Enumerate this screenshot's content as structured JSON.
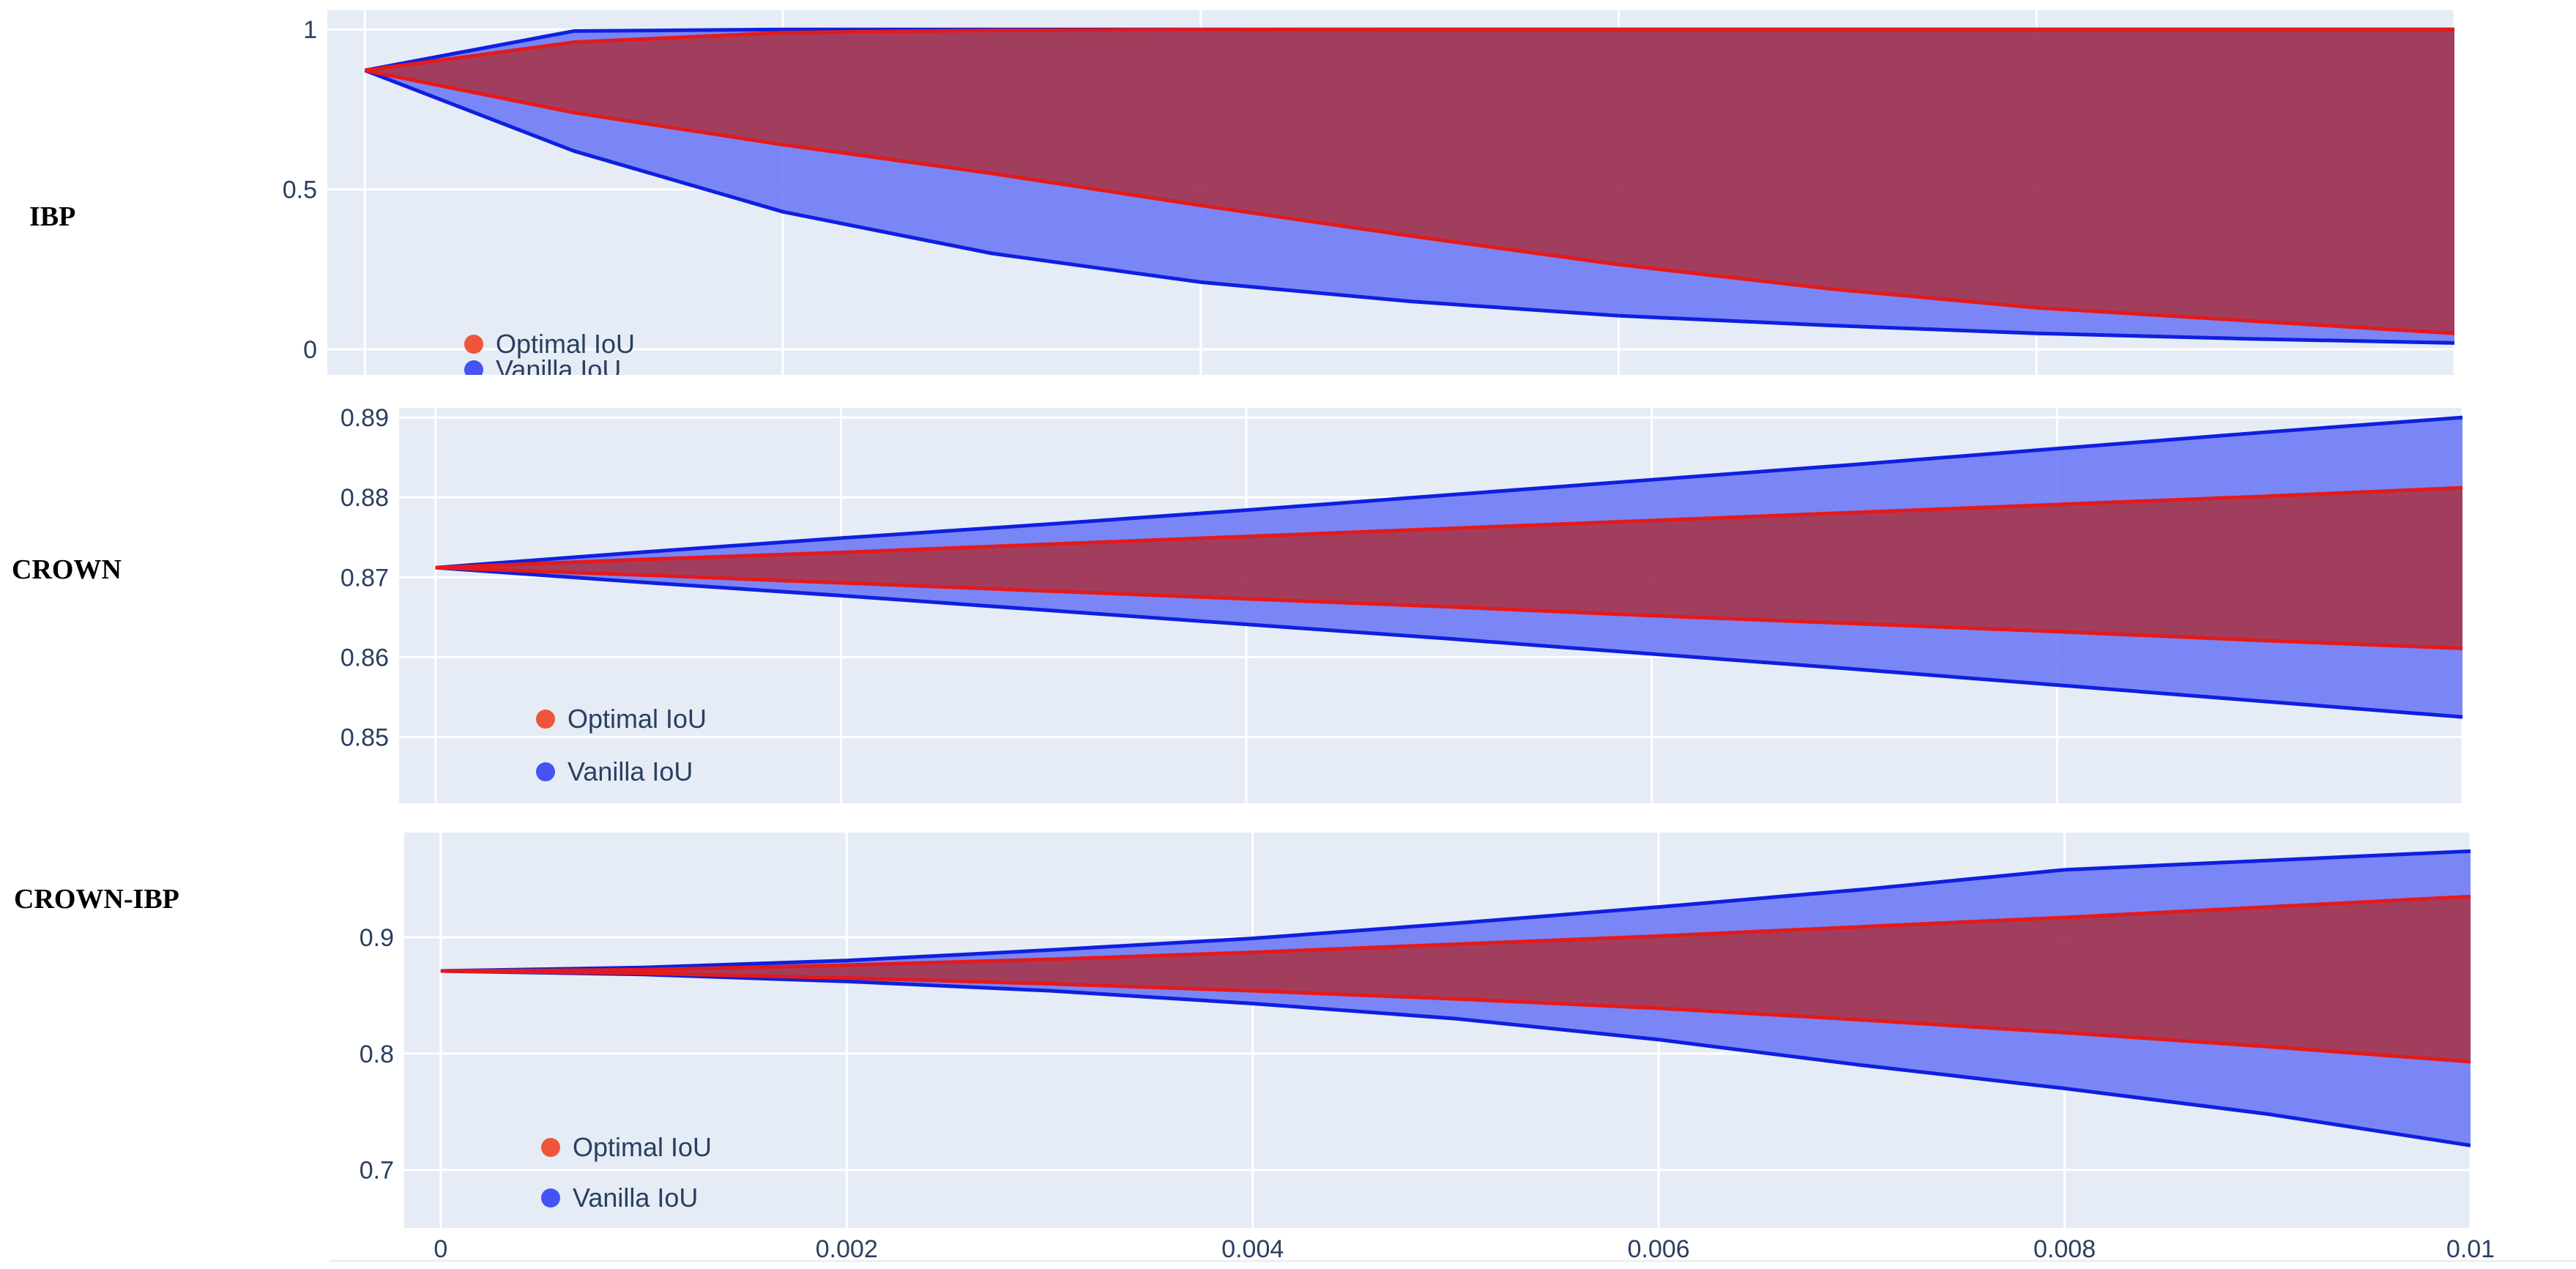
{
  "colors": {
    "background": "#ffffff",
    "plot_bg": "#e5ecf6",
    "grid": "#ffffff",
    "tick_text": "#2a3f5f",
    "optimal_line": "#e31a1c",
    "optimal_marker": "#ef553b",
    "optimal_fill": "#b22222",
    "vanilla_line": "#0f1fe0",
    "vanilla_marker": "#4552f5",
    "vanilla_fill": "#6b78f5"
  },
  "chart_data": [
    {
      "type": "area",
      "row_label": "IBP",
      "x": [
        0,
        0.001,
        0.002,
        0.003,
        0.004,
        0.005,
        0.006,
        0.007,
        0.008,
        0.009,
        0.01
      ],
      "xlim": [
        -0.00018,
        0.01
      ],
      "ylim": [
        -0.08,
        1.06
      ],
      "yticks": [
        0,
        0.5,
        1
      ],
      "ytick_labels": [
        "0",
        "0.5",
        "1"
      ],
      "xticks": [
        0,
        0.002,
        0.004,
        0.006,
        0.008,
        0.01
      ],
      "xtick_labels": [],
      "legend": {
        "placement": "bottom-left"
      },
      "series": [
        {
          "name": "Optimal IoU",
          "upper": [
            0.872,
            0.96,
            0.99,
            0.997,
            0.999,
            1.0,
            1.0,
            1.0,
            1.0,
            1.0,
            1.0
          ],
          "lower": [
            0.872,
            0.74,
            0.64,
            0.55,
            0.45,
            0.355,
            0.265,
            0.19,
            0.13,
            0.09,
            0.05
          ]
        },
        {
          "name": "Vanilla IoU",
          "upper": [
            0.872,
            0.995,
            1.0,
            1.0,
            1.0,
            1.0,
            1.0,
            1.0,
            1.0,
            1.0,
            1.0
          ],
          "lower": [
            0.872,
            0.62,
            0.43,
            0.3,
            0.21,
            0.15,
            0.105,
            0.075,
            0.05,
            0.033,
            0.02
          ]
        }
      ]
    },
    {
      "type": "area",
      "row_label": "CROWN",
      "x": [
        0,
        0.001,
        0.002,
        0.003,
        0.004,
        0.005,
        0.006,
        0.007,
        0.008,
        0.009,
        0.01
      ],
      "xlim": [
        -0.00018,
        0.01
      ],
      "ylim": [
        0.8417,
        0.8912
      ],
      "yticks": [
        0.85,
        0.86,
        0.87,
        0.88,
        0.89
      ],
      "ytick_labels": [
        "0.85",
        "0.86",
        "0.87",
        "0.88",
        "0.89"
      ],
      "xticks": [
        0,
        0.002,
        0.004,
        0.006,
        0.008,
        0.01
      ],
      "xtick_labels": [],
      "legend": {
        "placement": "bottom-left"
      },
      "series": [
        {
          "name": "Optimal IoU",
          "upper": [
            0.8712,
            0.8722,
            0.8731,
            0.8741,
            0.8751,
            0.8761,
            0.8771,
            0.8781,
            0.8791,
            0.8801,
            0.8812
          ],
          "lower": [
            0.8712,
            0.8703,
            0.8693,
            0.8683,
            0.8673,
            0.8663,
            0.8652,
            0.8642,
            0.8632,
            0.8621,
            0.8611
          ]
        },
        {
          "name": "Vanilla IoU",
          "upper": [
            0.8712,
            0.8731,
            0.8749,
            0.8766,
            0.8784,
            0.8803,
            0.8822,
            0.8841,
            0.8861,
            0.8881,
            0.89
          ],
          "lower": [
            0.8712,
            0.8694,
            0.8677,
            0.8659,
            0.8641,
            0.8623,
            0.8604,
            0.8585,
            0.8565,
            0.8545,
            0.8525
          ]
        }
      ]
    },
    {
      "type": "area",
      "row_label": "CROWN-IBP",
      "x": [
        0,
        0.001,
        0.002,
        0.003,
        0.004,
        0.005,
        0.006,
        0.007,
        0.008,
        0.009,
        0.01
      ],
      "xlim": [
        -0.00018,
        0.01
      ],
      "ylim": [
        0.65,
        0.99
      ],
      "yticks": [
        0.7,
        0.8,
        0.9
      ],
      "ytick_labels": [
        "0.7",
        "0.8",
        "0.9"
      ],
      "xticks": [
        0,
        0.002,
        0.004,
        0.006,
        0.008,
        0.01
      ],
      "xtick_labels": [
        "0",
        "0.002",
        "0.004",
        "0.006",
        "0.008",
        "0.01"
      ],
      "legend": {
        "placement": "bottom-left"
      },
      "series": [
        {
          "name": "Optimal IoU",
          "upper": [
            0.871,
            0.872,
            0.876,
            0.881,
            0.887,
            0.894,
            0.901,
            0.909,
            0.917,
            0.926,
            0.935
          ],
          "lower": [
            0.871,
            0.869,
            0.865,
            0.86,
            0.854,
            0.847,
            0.839,
            0.829,
            0.818,
            0.806,
            0.793
          ]
        },
        {
          "name": "Vanilla IoU",
          "upper": [
            0.871,
            0.874,
            0.88,
            0.889,
            0.899,
            0.912,
            0.926,
            0.941,
            0.958,
            0.966,
            0.974
          ],
          "lower": [
            0.871,
            0.868,
            0.862,
            0.854,
            0.843,
            0.83,
            0.812,
            0.79,
            0.77,
            0.748,
            0.721
          ]
        }
      ]
    }
  ]
}
